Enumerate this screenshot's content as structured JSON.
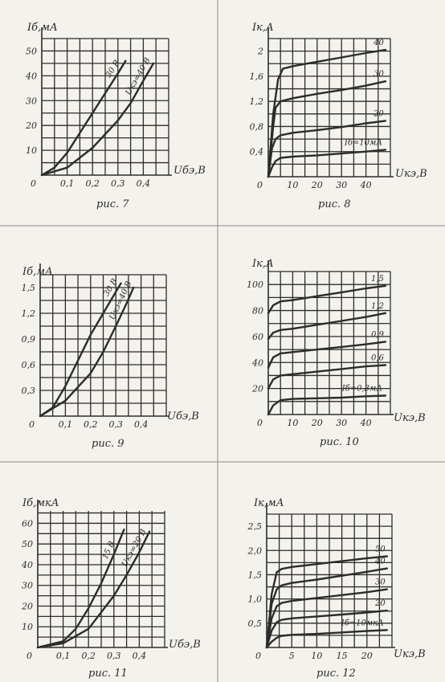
{
  "ink": "#2c2c2c",
  "paper": "#f4f2ec",
  "charts": [
    {
      "id": "fig7",
      "caption": "рис. 7",
      "ylabel": "Iб,мА",
      "xlabel": "Uбэ,В",
      "chart_data": {
        "type": "line",
        "x_ticks": [
          "0",
          "0,1",
          "0,2",
          "0,3",
          "0,4"
        ],
        "y_ticks": [
          "0",
          "10",
          "20",
          "30",
          "40",
          "50"
        ],
        "xlim": [
          0,
          0.5
        ],
        "ylim": [
          0,
          55
        ],
        "grid": true,
        "series": [
          {
            "name": "30 В",
            "points": [
              [
                0,
                0
              ],
              [
                0.05,
                3
              ],
              [
                0.1,
                9
              ],
              [
                0.15,
                17
              ],
              [
                0.2,
                25
              ],
              [
                0.25,
                33
              ],
              [
                0.3,
                41
              ],
              [
                0.33,
                46
              ]
            ]
          },
          {
            "name": "Uкэ=40 В",
            "points": [
              [
                0,
                0
              ],
              [
                0.1,
                3
              ],
              [
                0.2,
                11
              ],
              [
                0.3,
                22
              ],
              [
                0.35,
                29
              ],
              [
                0.4,
                38
              ],
              [
                0.44,
                45
              ]
            ]
          }
        ]
      }
    },
    {
      "id": "fig8",
      "caption": "рис. 8",
      "ylabel": "Iк,А",
      "xlabel": "Uкэ,В",
      "chart_data": {
        "type": "line",
        "x_ticks": [
          "0",
          "10",
          "20",
          "30",
          "40"
        ],
        "y_ticks": [
          "0,4",
          "0,8",
          "1,2",
          "1,6",
          "2"
        ],
        "xlim": [
          0,
          50
        ],
        "ylim": [
          0,
          2.2
        ],
        "grid": true,
        "series": [
          {
            "name": "40",
            "points": [
              [
                0,
                0
              ],
              [
                2,
                1.0
              ],
              [
                4,
                1.55
              ],
              [
                6,
                1.72
              ],
              [
                10,
                1.76
              ],
              [
                20,
                1.83
              ],
              [
                30,
                1.9
              ],
              [
                40,
                1.97
              ],
              [
                48,
                2.02
              ]
            ]
          },
          {
            "name": "30",
            "points": [
              [
                0,
                0
              ],
              [
                2,
                0.8
              ],
              [
                3,
                1.1
              ],
              [
                5,
                1.2
              ],
              [
                10,
                1.25
              ],
              [
                20,
                1.32
              ],
              [
                30,
                1.38
              ],
              [
                40,
                1.45
              ],
              [
                48,
                1.52
              ]
            ]
          },
          {
            "name": "20",
            "points": [
              [
                0,
                0
              ],
              [
                1.5,
                0.45
              ],
              [
                3,
                0.6
              ],
              [
                5,
                0.66
              ],
              [
                10,
                0.7
              ],
              [
                20,
                0.74
              ],
              [
                30,
                0.79
              ],
              [
                40,
                0.85
              ],
              [
                48,
                0.89
              ]
            ]
          },
          {
            "name": "Iб=10мА",
            "points": [
              [
                0,
                0
              ],
              [
                1.5,
                0.15
              ],
              [
                3,
                0.25
              ],
              [
                5,
                0.3
              ],
              [
                10,
                0.32
              ],
              [
                20,
                0.34
              ],
              [
                30,
                0.37
              ],
              [
                40,
                0.4
              ],
              [
                48,
                0.43
              ]
            ]
          }
        ]
      }
    },
    {
      "id": "fig9",
      "caption": "рис. 9",
      "ylabel": "Iб,мА",
      "xlabel": "Uбэ,В",
      "chart_data": {
        "type": "line",
        "x_ticks": [
          "0",
          "0,1",
          "0,2",
          "0,3",
          "0,4"
        ],
        "y_ticks": [
          "0",
          "0,3",
          "0,6",
          "0,9",
          "1,2",
          "1,5"
        ],
        "xlim": [
          0,
          0.5
        ],
        "ylim": [
          0,
          1.65
        ],
        "grid": true,
        "series": [
          {
            "name": "30 В",
            "points": [
              [
                0,
                0
              ],
              [
                0.05,
                0.1
              ],
              [
                0.1,
                0.35
              ],
              [
                0.15,
                0.65
              ],
              [
                0.2,
                0.95
              ],
              [
                0.25,
                1.2
              ],
              [
                0.3,
                1.45
              ],
              [
                0.32,
                1.55
              ]
            ]
          },
          {
            "name": "Uкэ=40 В",
            "points": [
              [
                0,
                0
              ],
              [
                0.1,
                0.18
              ],
              [
                0.2,
                0.5
              ],
              [
                0.25,
                0.75
              ],
              [
                0.3,
                1.05
              ],
              [
                0.34,
                1.3
              ],
              [
                0.37,
                1.5
              ]
            ]
          }
        ]
      }
    },
    {
      "id": "fig10",
      "caption": "рис. 10",
      "ylabel": "Iк,А",
      "xlabel": "Uкэ,В",
      "chart_data": {
        "type": "line",
        "x_ticks": [
          "0",
          "10",
          "20",
          "30",
          "40"
        ],
        "y_ticks": [
          "20",
          "40",
          "60",
          "80",
          "100"
        ],
        "xlim": [
          0,
          50
        ],
        "ylim": [
          0,
          110
        ],
        "grid": true,
        "series": [
          {
            "name": "1,5",
            "points": [
              [
                0,
                78
              ],
              [
                2,
                84
              ],
              [
                5,
                87
              ],
              [
                10,
                88
              ],
              [
                20,
                91
              ],
              [
                30,
                94
              ],
              [
                40,
                97
              ],
              [
                48,
                99
              ]
            ]
          },
          {
            "name": "1,2",
            "points": [
              [
                0,
                58
              ],
              [
                2,
                63
              ],
              [
                5,
                65
              ],
              [
                10,
                66
              ],
              [
                20,
                69
              ],
              [
                30,
                72
              ],
              [
                40,
                75
              ],
              [
                48,
                78
              ]
            ]
          },
          {
            "name": "0,9",
            "points": [
              [
                0,
                36
              ],
              [
                2,
                44
              ],
              [
                5,
                47
              ],
              [
                10,
                48
              ],
              [
                20,
                50
              ],
              [
                30,
                52
              ],
              [
                40,
                54
              ],
              [
                48,
                56
              ]
            ]
          },
          {
            "name": "0,6",
            "points": [
              [
                0,
                20
              ],
              [
                2,
                27
              ],
              [
                5,
                30
              ],
              [
                10,
                31
              ],
              [
                20,
                33
              ],
              [
                30,
                35
              ],
              [
                40,
                37
              ],
              [
                48,
                38
              ]
            ]
          },
          {
            "name": "Iб=0,3мА",
            "points": [
              [
                0,
                0
              ],
              [
                2,
                7
              ],
              [
                5,
                11
              ],
              [
                10,
                12
              ],
              [
                20,
                12.5
              ],
              [
                30,
                13
              ],
              [
                40,
                14
              ],
              [
                48,
                14.5
              ]
            ]
          }
        ]
      }
    },
    {
      "id": "fig11",
      "caption": "рис. 11",
      "ylabel": "Iб,мкА",
      "xlabel": "Uбэ,В",
      "chart_data": {
        "type": "line",
        "x_ticks": [
          "0",
          "0,1",
          "0,2",
          "0,3",
          "0,4"
        ],
        "y_ticks": [
          "0",
          "10",
          "20",
          "30",
          "40",
          "50",
          "60"
        ],
        "xlim": [
          0,
          0.5
        ],
        "ylim": [
          0,
          66
        ],
        "grid": true,
        "series": [
          {
            "name": "15 В",
            "points": [
              [
                0,
                0
              ],
              [
                0.1,
                3
              ],
              [
                0.15,
                9
              ],
              [
                0.2,
                19
              ],
              [
                0.25,
                31
              ],
              [
                0.3,
                45
              ],
              [
                0.34,
                57
              ]
            ]
          },
          {
            "name": "Uкэ=20 В",
            "points": [
              [
                0,
                0
              ],
              [
                0.1,
                2
              ],
              [
                0.2,
                9
              ],
              [
                0.3,
                25
              ],
              [
                0.35,
                35
              ],
              [
                0.4,
                46
              ],
              [
                0.44,
                56
              ]
            ]
          }
        ]
      }
    },
    {
      "id": "fig12",
      "caption": "рис. 12",
      "ylabel": "Iк,мА",
      "xlabel": "Uкэ,В",
      "chart_data": {
        "type": "line",
        "x_ticks": [
          "0",
          "5",
          "10",
          "15",
          "20"
        ],
        "y_ticks": [
          "0,5",
          "1,0",
          "1,5",
          "2,0",
          "2,5"
        ],
        "xlim": [
          0,
          25
        ],
        "ylim": [
          0,
          2.75
        ],
        "grid": true,
        "series": [
          {
            "name": "50",
            "points": [
              [
                0,
                0
              ],
              [
                1,
                1.1
              ],
              [
                2,
                1.55
              ],
              [
                3,
                1.62
              ],
              [
                5,
                1.66
              ],
              [
                10,
                1.72
              ],
              [
                15,
                1.78
              ],
              [
                20,
                1.84
              ],
              [
                24,
                1.88
              ]
            ]
          },
          {
            "name": "40",
            "points": [
              [
                0,
                0
              ],
              [
                1,
                0.9
              ],
              [
                2,
                1.2
              ],
              [
                3,
                1.28
              ],
              [
                5,
                1.33
              ],
              [
                10,
                1.4
              ],
              [
                15,
                1.48
              ],
              [
                20,
                1.56
              ],
              [
                24,
                1.63
              ]
            ]
          },
          {
            "name": "30",
            "points": [
              [
                0,
                0
              ],
              [
                1,
                0.6
              ],
              [
                2,
                0.85
              ],
              [
                3,
                0.92
              ],
              [
                5,
                0.96
              ],
              [
                10,
                1.02
              ],
              [
                15,
                1.08
              ],
              [
                20,
                1.14
              ],
              [
                24,
                1.2
              ]
            ]
          },
          {
            "name": "20",
            "points": [
              [
                0,
                0
              ],
              [
                1,
                0.35
              ],
              [
                2,
                0.52
              ],
              [
                3,
                0.57
              ],
              [
                5,
                0.6
              ],
              [
                10,
                0.64
              ],
              [
                15,
                0.68
              ],
              [
                20,
                0.72
              ],
              [
                24,
                0.76
              ]
            ]
          },
          {
            "name": "Iб=10мкА",
            "points": [
              [
                0,
                0
              ],
              [
                1,
                0.12
              ],
              [
                2,
                0.2
              ],
              [
                3,
                0.24
              ],
              [
                5,
                0.26
              ],
              [
                10,
                0.28
              ],
              [
                15,
                0.31
              ],
              [
                20,
                0.34
              ],
              [
                24,
                0.36
              ]
            ]
          }
        ]
      }
    }
  ]
}
